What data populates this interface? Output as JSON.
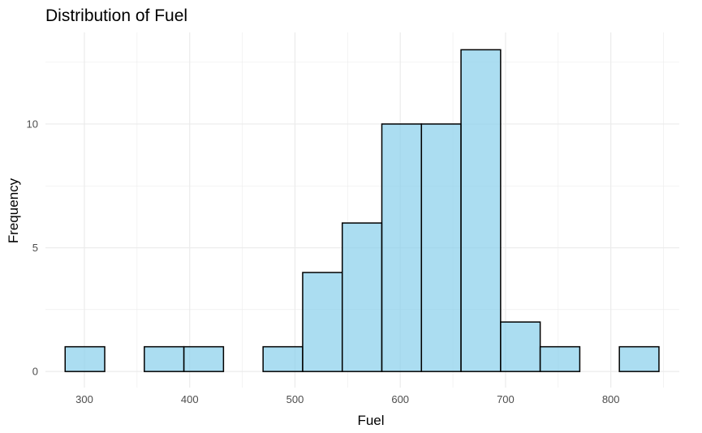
{
  "chart_data": {
    "type": "bar",
    "title": "Distribution of Fuel",
    "xlabel": "Fuel",
    "ylabel": "Frequency",
    "bin_width": 37.6,
    "bins": [
      {
        "start": 281.7,
        "end": 319.3,
        "count": 1
      },
      {
        "start": 319.3,
        "end": 356.9,
        "count": 0
      },
      {
        "start": 356.9,
        "end": 394.5,
        "count": 1
      },
      {
        "start": 394.5,
        "end": 432.1,
        "count": 1
      },
      {
        "start": 432.1,
        "end": 469.7,
        "count": 0
      },
      {
        "start": 469.7,
        "end": 507.3,
        "count": 1
      },
      {
        "start": 507.3,
        "end": 544.9,
        "count": 4
      },
      {
        "start": 544.9,
        "end": 582.5,
        "count": 6
      },
      {
        "start": 582.5,
        "end": 620.1,
        "count": 10
      },
      {
        "start": 620.1,
        "end": 657.7,
        "count": 10
      },
      {
        "start": 657.7,
        "end": 695.3,
        "count": 13
      },
      {
        "start": 695.3,
        "end": 732.9,
        "count": 2
      },
      {
        "start": 732.9,
        "end": 770.5,
        "count": 1
      },
      {
        "start": 770.5,
        "end": 808.1,
        "count": 0
      },
      {
        "start": 808.1,
        "end": 845.7,
        "count": 1
      }
    ],
    "xlim": [
      263,
      865
    ],
    "ylim": [
      -0.65,
      13.7
    ],
    "x_ticks": [
      300,
      400,
      500,
      600,
      700,
      800
    ],
    "x_tick_labels": [
      "300",
      "400",
      "500",
      "600",
      "700",
      "800"
    ],
    "y_ticks": [
      0,
      5,
      10
    ],
    "y_tick_labels": [
      "0",
      "5",
      "10"
    ],
    "grid": true,
    "colors": {
      "fill": "#87CEEB",
      "fill_opacity": 0.7,
      "stroke": "#000000",
      "grid": "#ebebeb"
    }
  }
}
